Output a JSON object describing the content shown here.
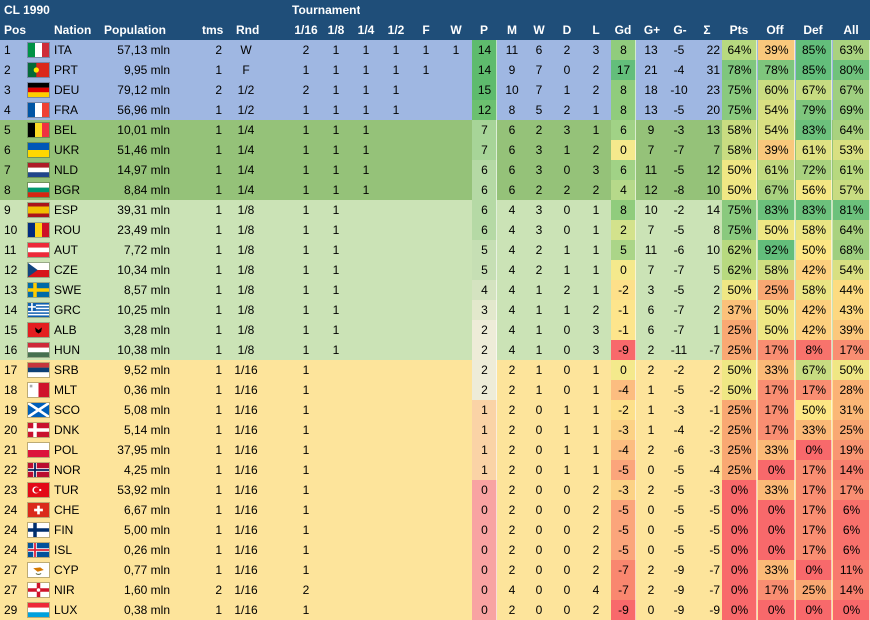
{
  "title": "CL 1990",
  "tournament_label": "Tournament",
  "headers": {
    "pos": "Pos",
    "nation": "Nation",
    "population": "Population",
    "tms": "tms",
    "rnd": "Rnd",
    "r16": "1/16",
    "r8": "1/8",
    "r4": "1/4",
    "r2": "1/2",
    "f": "F",
    "w": "W",
    "p": "P",
    "m": "M",
    "w2": "W",
    "d": "D",
    "l": "L",
    "gd": "Gd",
    "gp": "G+",
    "gm": "G-",
    "sum": "Σ",
    "pts": "Pts",
    "off": "Off",
    "def": "Def",
    "all": "All"
  },
  "colors": {
    "header": "#1f4e79",
    "group1": "#9fb7e2",
    "group2": "#95c279",
    "group3": "#cbe3b6",
    "group4": "#fde49b"
  },
  "rows": [
    {
      "pos": "1",
      "nation": "ITA",
      "flag": "italy-flag",
      "population": "57,13 mln",
      "tms": "2",
      "rnd": "W",
      "r16": "2",
      "r8": "1",
      "r4": "1",
      "r2": "1",
      "f": "1",
      "w": "1",
      "p": "14",
      "m": "11",
      "w2": "6",
      "d": "2",
      "l": "3",
      "gd": "8",
      "gp": "13",
      "gm": "-5",
      "sum": "22",
      "pts": "64%",
      "off": "39%",
      "def": "85%",
      "all": "63%",
      "group": 1,
      "cp": "#5ebb6d",
      "cgd": "#90cc7d",
      "cpts": "#b7d97f",
      "coff": "#f9c87c",
      "cdef": "#63be7b",
      "call": "#a9d27f"
    },
    {
      "pos": "2",
      "nation": "PRT",
      "flag": "portugal-flag",
      "population": "9,95 mln",
      "tms": "1",
      "rnd": "F",
      "r16": "1",
      "r8": "1",
      "r4": "1",
      "r2": "1",
      "f": "1",
      "w": "",
      "p": "14",
      "m": "9",
      "w2": "7",
      "d": "0",
      "l": "2",
      "gd": "17",
      "gp": "21",
      "gm": "-4",
      "sum": "31",
      "pts": "78%",
      "off": "78%",
      "def": "85%",
      "all": "80%",
      "group": 1,
      "cp": "#5ebb6d",
      "cgd": "#63be7b",
      "cpts": "#7fc67d",
      "coff": "#7fc67d",
      "cdef": "#63be7b",
      "call": "#70c27c"
    },
    {
      "pos": "3",
      "nation": "DEU",
      "flag": "germany-flag",
      "population": "79,12 mln",
      "tms": "2",
      "rnd": "1/2",
      "r16": "2",
      "r8": "1",
      "r4": "1",
      "r2": "1",
      "f": "",
      "w": "",
      "p": "15",
      "m": "10",
      "w2": "7",
      "d": "1",
      "l": "2",
      "gd": "8",
      "gp": "18",
      "gm": "-10",
      "sum": "23",
      "pts": "75%",
      "off": "60%",
      "def": "67%",
      "all": "67%",
      "group": 1,
      "cp": "#5ebb6d",
      "cgd": "#90cc7d",
      "cpts": "#8ac97e",
      "coff": "#c9dc81",
      "cdef": "#c7dc81",
      "call": "#9fcf7f"
    },
    {
      "pos": "4",
      "nation": "FRA",
      "flag": "france-flag",
      "population": "56,96 mln",
      "tms": "1",
      "rnd": "1/2",
      "r16": "1",
      "r8": "1",
      "r4": "1",
      "r2": "1",
      "f": "",
      "w": "",
      "p": "12",
      "m": "8",
      "w2": "5",
      "d": "2",
      "l": "1",
      "gd": "8",
      "gp": "13",
      "gm": "-5",
      "sum": "20",
      "pts": "75%",
      "off": "54%",
      "def": "79%",
      "all": "69%",
      "group": 1,
      "cp": "#6cc06f",
      "cgd": "#90cc7d",
      "cpts": "#8ac97e",
      "coff": "#d9e082",
      "cdef": "#7fc67d",
      "call": "#97cd7e"
    },
    {
      "pos": "5",
      "nation": "BEL",
      "flag": "belgium-flag",
      "population": "10,01 mln",
      "tms": "1",
      "rnd": "1/4",
      "r16": "1",
      "r8": "1",
      "r4": "1",
      "r2": "",
      "f": "",
      "w": "",
      "p": "7",
      "m": "6",
      "w2": "2",
      "d": "3",
      "l": "1",
      "gd": "6",
      "gp": "9",
      "gm": "-3",
      "sum": "13",
      "pts": "58%",
      "off": "54%",
      "def": "83%",
      "all": "64%",
      "group": 2,
      "cp": "#a7d498",
      "cgd": "#a1d286",
      "cpts": "#c9dc81",
      "coff": "#d9e082",
      "cdef": "#6cc17c",
      "call": "#a9d27f"
    },
    {
      "pos": "6",
      "nation": "UKR",
      "flag": "ukraine-flag",
      "population": "51,46 mln",
      "tms": "1",
      "rnd": "1/4",
      "r16": "1",
      "r8": "1",
      "r4": "1",
      "r2": "",
      "f": "",
      "w": "",
      "p": "7",
      "m": "6",
      "w2": "3",
      "d": "1",
      "l": "2",
      "gd": "0",
      "gp": "7",
      "gm": "-7",
      "sum": "7",
      "pts": "58%",
      "off": "39%",
      "def": "61%",
      "all": "53%",
      "group": 2,
      "cp": "#a7d498",
      "cgd": "#f4e98c",
      "cpts": "#c9dc81",
      "coff": "#f9c87c",
      "cdef": "#dfe283",
      "call": "#d9e082"
    },
    {
      "pos": "7",
      "nation": "NLD",
      "flag": "netherlands-flag",
      "population": "14,97 mln",
      "tms": "1",
      "rnd": "1/4",
      "r16": "1",
      "r8": "1",
      "r4": "1",
      "r2": "",
      "f": "",
      "w": "",
      "p": "6",
      "m": "6",
      "w2": "3",
      "d": "0",
      "l": "3",
      "gd": "6",
      "gp": "11",
      "gm": "-5",
      "sum": "12",
      "pts": "50%",
      "off": "61%",
      "def": "72%",
      "all": "61%",
      "group": 2,
      "cp": "#b5d9a5",
      "cgd": "#a1d286",
      "cpts": "#efe784",
      "coff": "#c2da80",
      "cdef": "#a9d27f",
      "call": "#b7d97f"
    },
    {
      "pos": "8",
      "nation": "BGR",
      "flag": "bulgaria-flag",
      "population": "8,84 mln",
      "tms": "1",
      "rnd": "1/4",
      "r16": "1",
      "r8": "1",
      "r4": "1",
      "r2": "",
      "f": "",
      "w": "",
      "p": "6",
      "m": "6",
      "w2": "2",
      "d": "2",
      "l": "2",
      "gd": "4",
      "gp": "12",
      "gm": "-8",
      "sum": "10",
      "pts": "50%",
      "off": "67%",
      "def": "56%",
      "all": "57%",
      "group": 2,
      "cp": "#b5d9a5",
      "cgd": "#b6d98a",
      "cpts": "#efe784",
      "coff": "#a9d27f",
      "cdef": "#f4e783",
      "call": "#c9dc81"
    },
    {
      "pos": "9",
      "nation": "ESP",
      "flag": "spain-flag",
      "population": "39,31 mln",
      "tms": "1",
      "rnd": "1/8",
      "r16": "1",
      "r8": "1",
      "r4": "",
      "r2": "",
      "f": "",
      "w": "",
      "p": "6",
      "m": "4",
      "w2": "3",
      "d": "0",
      "l": "1",
      "gd": "8",
      "gp": "10",
      "gm": "-2",
      "sum": "14",
      "pts": "75%",
      "off": "83%",
      "def": "83%",
      "all": "81%",
      "group": 3,
      "cp": "#b5d9a5",
      "cgd": "#90cc7d",
      "cpts": "#8ac97e",
      "coff": "#6cc17c",
      "cdef": "#6cc17c",
      "call": "#6cc17c"
    },
    {
      "pos": "10",
      "nation": "ROU",
      "flag": "romania-flag",
      "population": "23,49 mln",
      "tms": "1",
      "rnd": "1/8",
      "r16": "1",
      "r8": "1",
      "r4": "",
      "r2": "",
      "f": "",
      "w": "",
      "p": "6",
      "m": "4",
      "w2": "3",
      "d": "0",
      "l": "1",
      "gd": "2",
      "gp": "7",
      "gm": "-5",
      "sum": "8",
      "pts": "75%",
      "off": "50%",
      "def": "58%",
      "all": "64%",
      "group": 3,
      "cp": "#b5d9a5",
      "cgd": "#d3e28c",
      "cpts": "#8ac97e",
      "coff": "#efe784",
      "cdef": "#eae583",
      "call": "#a9d27f"
    },
    {
      "pos": "11",
      "nation": "AUT",
      "flag": "austria-flag",
      "population": "7,72 mln",
      "tms": "1",
      "rnd": "1/8",
      "r16": "1",
      "r8": "1",
      "r4": "",
      "r2": "",
      "f": "",
      "w": "",
      "p": "5",
      "m": "4",
      "w2": "2",
      "d": "1",
      "l": "1",
      "gd": "5",
      "gp": "11",
      "gm": "-6",
      "sum": "10",
      "pts": "62%",
      "off": "92%",
      "def": "50%",
      "all": "68%",
      "group": 3,
      "cp": "#c6dfb4",
      "cgd": "#abd588",
      "cpts": "#b7d97f",
      "coff": "#63be7b",
      "cdef": "#fde784",
      "call": "#9fcf7f"
    },
    {
      "pos": "12",
      "nation": "CZE",
      "flag": "czech-flag",
      "population": "10,34 mln",
      "tms": "1",
      "rnd": "1/8",
      "r16": "1",
      "r8": "1",
      "r4": "",
      "r2": "",
      "f": "",
      "w": "",
      "p": "5",
      "m": "4",
      "w2": "2",
      "d": "1",
      "l": "1",
      "gd": "0",
      "gp": "7",
      "gm": "-7",
      "sum": "5",
      "pts": "62%",
      "off": "58%",
      "def": "42%",
      "all": "54%",
      "group": 3,
      "cp": "#c6dfb4",
      "cgd": "#f4e98c",
      "cpts": "#b7d97f",
      "coff": "#cfde81",
      "cdef": "#fdd07e",
      "call": "#d9e082"
    },
    {
      "pos": "13",
      "nation": "SWE",
      "flag": "sweden-flag",
      "population": "8,57 mln",
      "tms": "1",
      "rnd": "1/8",
      "r16": "1",
      "r8": "1",
      "r4": "",
      "r2": "",
      "f": "",
      "w": "",
      "p": "4",
      "m": "4",
      "w2": "1",
      "d": "2",
      "l": "1",
      "gd": "-2",
      "gp": "3",
      "gm": "-5",
      "sum": "2",
      "pts": "50%",
      "off": "25%",
      "def": "58%",
      "all": "44%",
      "group": 3,
      "cp": "#d4e3c0",
      "cgd": "#fde08a",
      "cpts": "#efe784",
      "coff": "#f9a873",
      "cdef": "#eae583",
      "call": "#fddc81"
    },
    {
      "pos": "14",
      "nation": "GRC",
      "flag": "greece-flag",
      "population": "10,25 mln",
      "tms": "1",
      "rnd": "1/8",
      "r16": "1",
      "r8": "1",
      "r4": "",
      "r2": "",
      "f": "",
      "w": "",
      "p": "3",
      "m": "4",
      "w2": "1",
      "d": "1",
      "l": "2",
      "gd": "-1",
      "gp": "6",
      "gm": "-7",
      "sum": "2",
      "pts": "37%",
      "off": "50%",
      "def": "42%",
      "all": "43%",
      "group": 3,
      "cp": "#e2e8cc",
      "cgd": "#fde58c",
      "cpts": "#fbc17a",
      "coff": "#efe784",
      "cdef": "#fdd07e",
      "call": "#fdd880"
    },
    {
      "pos": "15",
      "nation": "ALB",
      "flag": "albania-flag",
      "population": "3,28 mln",
      "tms": "1",
      "rnd": "1/8",
      "r16": "1",
      "r8": "1",
      "r4": "",
      "r2": "",
      "f": "",
      "w": "",
      "p": "2",
      "m": "4",
      "w2": "1",
      "d": "0",
      "l": "3",
      "gd": "-1",
      "gp": "6",
      "gm": "-7",
      "sum": "1",
      "pts": "25%",
      "off": "50%",
      "def": "42%",
      "all": "39%",
      "group": 3,
      "cp": "#eeecd8",
      "cgd": "#fde58c",
      "cpts": "#f9a873",
      "coff": "#efe784",
      "cdef": "#fdd07e",
      "call": "#fcc87c"
    },
    {
      "pos": "16",
      "nation": "HUN",
      "flag": "hungary-flag",
      "population": "10,38 mln",
      "tms": "1",
      "rnd": "1/8",
      "r16": "1",
      "r8": "1",
      "r4": "",
      "r2": "",
      "f": "",
      "w": "",
      "p": "2",
      "m": "4",
      "w2": "1",
      "d": "0",
      "l": "3",
      "gd": "-9",
      "gp": "2",
      "gm": "-11",
      "sum": "-7",
      "pts": "25%",
      "off": "17%",
      "def": "8%",
      "all": "17%",
      "group": 3,
      "cp": "#eeecd8",
      "cgd": "#f8696b",
      "cpts": "#f9a873",
      "coff": "#f98e72",
      "cdef": "#f8736c",
      "call": "#f98e72"
    },
    {
      "pos": "17",
      "nation": "SRB",
      "flag": "serbia-flag",
      "population": "9,52 mln",
      "tms": "1",
      "rnd": "1/16",
      "r16": "1",
      "r8": "",
      "r4": "",
      "r2": "",
      "f": "",
      "w": "",
      "p": "2",
      "m": "2",
      "w2": "1",
      "d": "0",
      "l": "1",
      "gd": "0",
      "gp": "2",
      "gm": "-2",
      "sum": "2",
      "pts": "50%",
      "off": "33%",
      "def": "67%",
      "all": "50%",
      "group": 4,
      "cp": "#eeecd8",
      "cgd": "#f4e98c",
      "cpts": "#efe784",
      "coff": "#fbb977",
      "cdef": "#c7dc81",
      "call": "#efe784"
    },
    {
      "pos": "18",
      "nation": "MLT",
      "flag": "malta-flag",
      "population": "0,36 mln",
      "tms": "1",
      "rnd": "1/16",
      "r16": "1",
      "r8": "",
      "r4": "",
      "r2": "",
      "f": "",
      "w": "",
      "p": "2",
      "m": "2",
      "w2": "1",
      "d": "0",
      "l": "1",
      "gd": "-4",
      "gp": "1",
      "gm": "-5",
      "sum": "-2",
      "pts": "50%",
      "off": "17%",
      "def": "17%",
      "all": "28%",
      "group": 4,
      "cp": "#eeecd8",
      "cgd": "#fcbd80",
      "cpts": "#efe784",
      "coff": "#f98e72",
      "cdef": "#f98e72",
      "call": "#fbb276"
    },
    {
      "pos": "19",
      "nation": "SCO",
      "flag": "scotland-flag",
      "population": "5,08 mln",
      "tms": "1",
      "rnd": "1/16",
      "r16": "1",
      "r8": "",
      "r4": "",
      "r2": "",
      "f": "",
      "w": "",
      "p": "1",
      "m": "2",
      "w2": "0",
      "d": "1",
      "l": "1",
      "gd": "-2",
      "gp": "1",
      "gm": "-3",
      "sum": "-1",
      "pts": "25%",
      "off": "17%",
      "def": "50%",
      "all": "31%",
      "group": 4,
      "cp": "#fad3a6",
      "cgd": "#fde08a",
      "cpts": "#f9a873",
      "coff": "#f98e72",
      "cdef": "#fde784",
      "call": "#fbb877"
    },
    {
      "pos": "20",
      "nation": "DNK",
      "flag": "denmark-flag",
      "population": "5,14 mln",
      "tms": "1",
      "rnd": "1/16",
      "r16": "1",
      "r8": "",
      "r4": "",
      "r2": "",
      "f": "",
      "w": "",
      "p": "1",
      "m": "2",
      "w2": "0",
      "d": "1",
      "l": "1",
      "gd": "-3",
      "gp": "1",
      "gm": "-4",
      "sum": "-2",
      "pts": "25%",
      "off": "17%",
      "def": "33%",
      "all": "25%",
      "group": 4,
      "cp": "#fad3a6",
      "cgd": "#fcd285",
      "cpts": "#f9a873",
      "coff": "#f98e72",
      "cdef": "#fbb977",
      "call": "#f9a873"
    },
    {
      "pos": "21",
      "nation": "POL",
      "flag": "poland-flag",
      "population": "37,95 mln",
      "tms": "1",
      "rnd": "1/16",
      "r16": "1",
      "r8": "",
      "r4": "",
      "r2": "",
      "f": "",
      "w": "",
      "p": "1",
      "m": "2",
      "w2": "0",
      "d": "1",
      "l": "1",
      "gd": "-4",
      "gp": "2",
      "gm": "-6",
      "sum": "-3",
      "pts": "25%",
      "off": "33%",
      "def": "0%",
      "all": "19%",
      "group": 4,
      "cp": "#fad3a6",
      "cgd": "#fcbd80",
      "cpts": "#f9a873",
      "coff": "#fbb977",
      "cdef": "#f8696b",
      "call": "#f99572"
    },
    {
      "pos": "22",
      "nation": "NOR",
      "flag": "norway-flag",
      "population": "4,25 mln",
      "tms": "1",
      "rnd": "1/16",
      "r16": "1",
      "r8": "",
      "r4": "",
      "r2": "",
      "f": "",
      "w": "",
      "p": "1",
      "m": "2",
      "w2": "0",
      "d": "1",
      "l": "1",
      "gd": "-5",
      "gp": "0",
      "gm": "-5",
      "sum": "-4",
      "pts": "25%",
      "off": "0%",
      "def": "17%",
      "all": "14%",
      "group": 4,
      "cp": "#fad3a6",
      "cgd": "#fba57b",
      "cpts": "#f9a873",
      "coff": "#f8696b",
      "cdef": "#f98e72",
      "call": "#f8806f"
    },
    {
      "pos": "23",
      "nation": "TUR",
      "flag": "turkey-flag",
      "population": "53,92 mln",
      "tms": "1",
      "rnd": "1/16",
      "r16": "1",
      "r8": "",
      "r4": "",
      "r2": "",
      "f": "",
      "w": "",
      "p": "0",
      "m": "2",
      "w2": "0",
      "d": "0",
      "l": "2",
      "gd": "-3",
      "gp": "2",
      "gm": "-5",
      "sum": "-3",
      "pts": "0%",
      "off": "33%",
      "def": "17%",
      "all": "17%",
      "group": 4,
      "cp": "#f8a3a2",
      "cgd": "#fcd285",
      "cpts": "#f8696b",
      "coff": "#fbb977",
      "cdef": "#f98e72",
      "call": "#f98e72"
    },
    {
      "pos": "24",
      "nation": "CHE",
      "flag": "switzerland-flag",
      "population": "6,67 mln",
      "tms": "1",
      "rnd": "1/16",
      "r16": "1",
      "r8": "",
      "r4": "",
      "r2": "",
      "f": "",
      "w": "",
      "p": "0",
      "m": "2",
      "w2": "0",
      "d": "0",
      "l": "2",
      "gd": "-5",
      "gp": "0",
      "gm": "-5",
      "sum": "-5",
      "pts": "0%",
      "off": "0%",
      "def": "17%",
      "all": "6%",
      "group": 4,
      "cp": "#f8a3a2",
      "cgd": "#fba57b",
      "cpts": "#f8696b",
      "coff": "#f8696b",
      "cdef": "#f98e72",
      "call": "#f8716c"
    },
    {
      "pos": "24",
      "nation": "FIN",
      "flag": "finland-flag",
      "population": "5,00 mln",
      "tms": "1",
      "rnd": "1/16",
      "r16": "1",
      "r8": "",
      "r4": "",
      "r2": "",
      "f": "",
      "w": "",
      "p": "0",
      "m": "2",
      "w2": "0",
      "d": "0",
      "l": "2",
      "gd": "-5",
      "gp": "0",
      "gm": "-5",
      "sum": "-5",
      "pts": "0%",
      "off": "0%",
      "def": "17%",
      "all": "6%",
      "group": 4,
      "cp": "#f8a3a2",
      "cgd": "#fba57b",
      "cpts": "#f8696b",
      "coff": "#f8696b",
      "cdef": "#f98e72",
      "call": "#f8716c"
    },
    {
      "pos": "24",
      "nation": "ISL",
      "flag": "iceland-flag",
      "population": "0,26 mln",
      "tms": "1",
      "rnd": "1/16",
      "r16": "1",
      "r8": "",
      "r4": "",
      "r2": "",
      "f": "",
      "w": "",
      "p": "0",
      "m": "2",
      "w2": "0",
      "d": "0",
      "l": "2",
      "gd": "-5",
      "gp": "0",
      "gm": "-5",
      "sum": "-5",
      "pts": "0%",
      "off": "0%",
      "def": "17%",
      "all": "6%",
      "group": 4,
      "cp": "#f8a3a2",
      "cgd": "#fba57b",
      "cpts": "#f8696b",
      "coff": "#f8696b",
      "cdef": "#f98e72",
      "call": "#f8716c"
    },
    {
      "pos": "27",
      "nation": "CYP",
      "flag": "cyprus-flag",
      "population": "0,77 mln",
      "tms": "1",
      "rnd": "1/16",
      "r16": "1",
      "r8": "",
      "r4": "",
      "r2": "",
      "f": "",
      "w": "",
      "p": "0",
      "m": "2",
      "w2": "0",
      "d": "0",
      "l": "2",
      "gd": "-7",
      "gp": "2",
      "gm": "-9",
      "sum": "-7",
      "pts": "0%",
      "off": "33%",
      "def": "0%",
      "all": "11%",
      "group": 4,
      "cp": "#f8a3a2",
      "cgd": "#f9876f",
      "cpts": "#f8696b",
      "coff": "#fbb977",
      "cdef": "#f8696b",
      "call": "#f8796d"
    },
    {
      "pos": "27",
      "nation": "NIR",
      "flag": "northern-ireland-flag",
      "population": "1,60 mln",
      "tms": "2",
      "rnd": "1/16",
      "r16": "2",
      "r8": "",
      "r4": "",
      "r2": "",
      "f": "",
      "w": "",
      "p": "0",
      "m": "4",
      "w2": "0",
      "d": "0",
      "l": "4",
      "gd": "-7",
      "gp": "2",
      "gm": "-9",
      "sum": "-7",
      "pts": "0%",
      "off": "17%",
      "def": "25%",
      "all": "14%",
      "group": 4,
      "cp": "#f8a3a2",
      "cgd": "#f9876f",
      "cpts": "#f8696b",
      "coff": "#f98e72",
      "cdef": "#f9a873",
      "call": "#f8806f"
    },
    {
      "pos": "29",
      "nation": "LUX",
      "flag": "luxembourg-flag",
      "population": "0,38 mln",
      "tms": "1",
      "rnd": "1/16",
      "r16": "1",
      "r8": "",
      "r4": "",
      "r2": "",
      "f": "",
      "w": "",
      "p": "0",
      "m": "2",
      "w2": "0",
      "d": "0",
      "l": "2",
      "gd": "-9",
      "gp": "0",
      "gm": "-9",
      "sum": "-9",
      "pts": "0%",
      "off": "0%",
      "def": "0%",
      "all": "0%",
      "group": 4,
      "cp": "#f8a3a2",
      "cgd": "#f8696b",
      "cpts": "#f8696b",
      "coff": "#f8696b",
      "cdef": "#f8696b",
      "call": "#f8696b"
    }
  ]
}
